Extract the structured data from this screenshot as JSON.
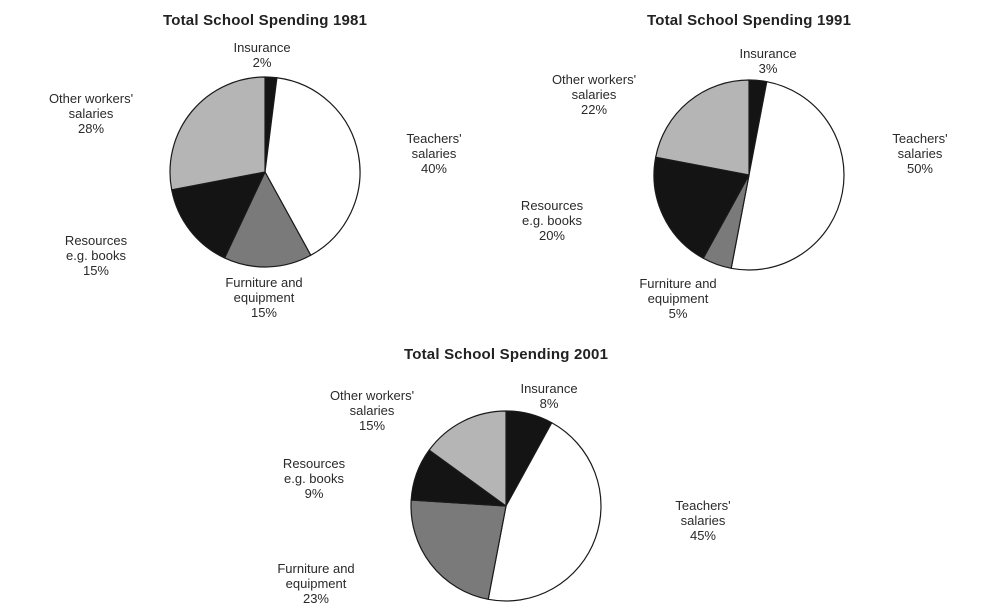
{
  "chart_data": [
    {
      "type": "pie",
      "title": "Total School Spending 1981",
      "slices": [
        {
          "name": "Insurance",
          "label_lines": [
            "Insurance"
          ],
          "value": 2,
          "value_label": "2%",
          "color": "#141414"
        },
        {
          "name": "Teachers' salaries",
          "label_lines": [
            "Teachers'",
            "salaries"
          ],
          "value": 40,
          "value_label": "40%",
          "color": "#ffffff"
        },
        {
          "name": "Furniture and equipment",
          "label_lines": [
            "Furniture and",
            "equipment"
          ],
          "value": 15,
          "value_label": "15%",
          "color": "#7a7a7a"
        },
        {
          "name": "Resources e.g. books",
          "label_lines": [
            "Resources",
            "e.g. books"
          ],
          "value": 15,
          "value_label": "15%",
          "color": "#141414"
        },
        {
          "name": "Other workers' salaries",
          "label_lines": [
            "Other workers'",
            "salaries"
          ],
          "value": 28,
          "value_label": "28%",
          "color": "#b5b5b5"
        }
      ]
    },
    {
      "type": "pie",
      "title": "Total School Spending 1991",
      "slices": [
        {
          "name": "Insurance",
          "label_lines": [
            "Insurance"
          ],
          "value": 3,
          "value_label": "3%",
          "color": "#141414"
        },
        {
          "name": "Teachers' salaries",
          "label_lines": [
            "Teachers'",
            "salaries"
          ],
          "value": 50,
          "value_label": "50%",
          "color": "#ffffff"
        },
        {
          "name": "Furniture and equipment",
          "label_lines": [
            "Furniture and",
            "equipment"
          ],
          "value": 5,
          "value_label": "5%",
          "color": "#7a7a7a"
        },
        {
          "name": "Resources e.g. books",
          "label_lines": [
            "Resources",
            "e.g. books"
          ],
          "value": 20,
          "value_label": "20%",
          "color": "#141414"
        },
        {
          "name": "Other workers' salaries",
          "label_lines": [
            "Other workers'",
            "salaries"
          ],
          "value": 22,
          "value_label": "22%",
          "color": "#b5b5b5"
        }
      ]
    },
    {
      "type": "pie",
      "title": "Total School Spending 2001",
      "slices": [
        {
          "name": "Insurance",
          "label_lines": [
            "Insurance"
          ],
          "value": 8,
          "value_label": "8%",
          "color": "#141414"
        },
        {
          "name": "Teachers' salaries",
          "label_lines": [
            "Teachers'",
            "salaries"
          ],
          "value": 45,
          "value_label": "45%",
          "color": "#ffffff"
        },
        {
          "name": "Furniture and equipment",
          "label_lines": [
            "Furniture and",
            "equipment"
          ],
          "value": 23,
          "value_label": "23%",
          "color": "#7a7a7a"
        },
        {
          "name": "Resources e.g. books",
          "label_lines": [
            "Resources",
            "e.g. books"
          ],
          "value": 9,
          "value_label": "9%",
          "color": "#141414"
        },
        {
          "name": "Other workers' salaries",
          "label_lines": [
            "Other workers'",
            "salaries"
          ],
          "value": 15,
          "value_label": "15%",
          "color": "#b5b5b5"
        }
      ]
    }
  ]
}
